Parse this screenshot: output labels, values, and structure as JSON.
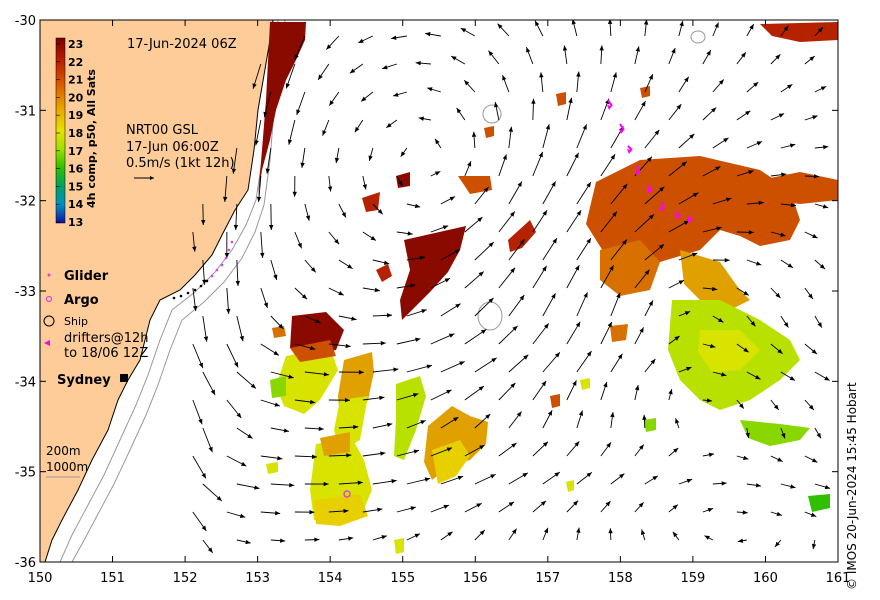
{
  "map": {
    "date_label": "17-Jun-2024 06Z",
    "current_title": "NRT00 GSL",
    "current_time": "17-Jun 06:00Z",
    "current_scale": "0.5m/s (1kt 12h)",
    "axes": {
      "lon_ticks": [
        "150",
        "151",
        "152",
        "153",
        "154",
        "155",
        "156",
        "157",
        "158",
        "159",
        "160",
        "161"
      ],
      "lat_ticks": [
        "-30",
        "-31",
        "-32",
        "-33",
        "-34",
        "-35",
        "-36"
      ],
      "lon_range": [
        150,
        161
      ],
      "lat_range": [
        -36,
        -30
      ]
    },
    "colorbar": {
      "label": "4h comp, p50, All Sats",
      "ticks": [
        "23",
        "22",
        "21",
        "20",
        "19",
        "18",
        "17",
        "16",
        "15",
        "14",
        "13"
      ],
      "range": [
        13,
        23
      ],
      "colors": [
        "#7a0000",
        "#b01800",
        "#d04000",
        "#e07800",
        "#e8b000",
        "#e8e000",
        "#a0e000",
        "#30c000",
        "#00a060",
        "#0090c0",
        "#0050d0",
        "#1010a0"
      ]
    },
    "legend": {
      "glider": "Glider",
      "argo": "Argo",
      "ship": "Ship",
      "drifters_line1": "drifters@12h",
      "drifters_line2": "to 18/06 12Z"
    },
    "place_label": "Sydney",
    "contours": {
      "label_200": "200m",
      "label_1000": "1000m"
    },
    "credit": "© IMOS 20-Jun-2024 15:45 Hobart",
    "colors": {
      "land": "#fdcc99",
      "glider": "#e040e0",
      "argo": "#e040e0",
      "drifter": "#ff00ff"
    }
  }
}
